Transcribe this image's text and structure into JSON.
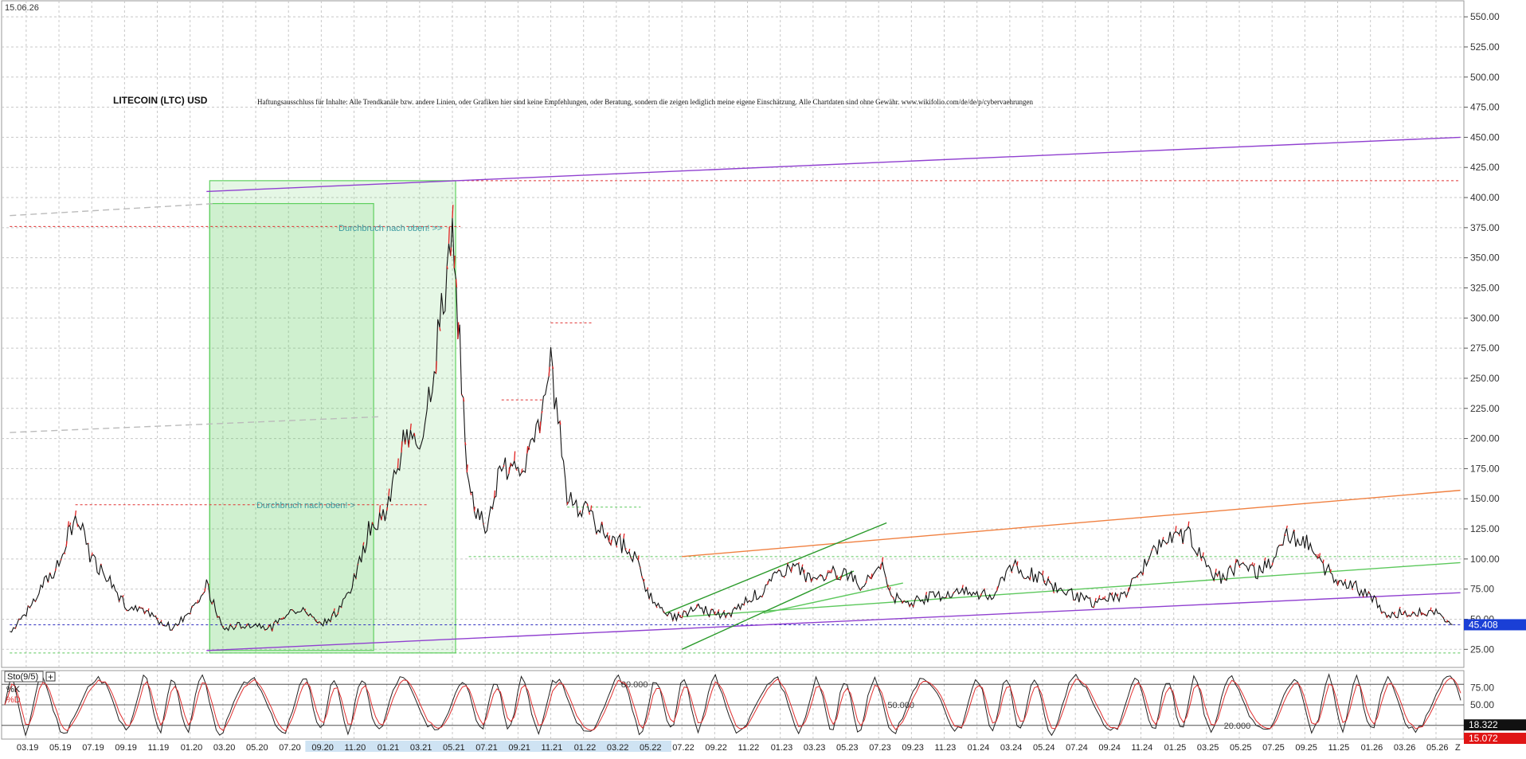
{
  "header": {
    "date": "15.06.26",
    "title": "LITECOIN (LTC) USD",
    "disclaimer": "Haftungsausschluss für Inhalte: Alle Trendkanäle bzw. andere Linien, oder Grafiken hier sind keine Empfehlungen, oder Beratung, sondern die zeigen lediglich meine eigene Einschätzung. Alle Chartdaten sind ohne Gewähr.  www.wikifolio.com/de/de/p/cybervaehrungen"
  },
  "chart_data": [
    {
      "type": "candlestick",
      "title": "LITECOIN (LTC) USD",
      "y_axis_position": "right",
      "ylim": [
        10,
        560
      ],
      "yticks": [
        "25.00",
        "50.00",
        "75.00",
        "100.00",
        "125.00",
        "150.00",
        "175.00",
        "200.00",
        "225.00",
        "250.00",
        "275.00",
        "300.00",
        "325.00",
        "350.00",
        "375.00",
        "400.00",
        "425.00",
        "450.00",
        "475.00",
        "500.00",
        "525.00",
        "550.00"
      ],
      "xticks": [
        "03.19",
        "05.19",
        "07.19",
        "09.19",
        "11.19",
        "01.20",
        "03.20",
        "05.20",
        "07.20",
        "09.20",
        "11.20",
        "01.21",
        "03.21",
        "05.21",
        "07.21",
        "09.21",
        "11.21",
        "01.22",
        "03.22",
        "05.22",
        "07.22",
        "09.22",
        "11.22",
        "01.23",
        "03.23",
        "05.23",
        "07.23",
        "09.23",
        "11.23",
        "01.24",
        "03.24",
        "05.24",
        "07.24",
        "09.24",
        "11.24",
        "01.25",
        "03.25",
        "05.25",
        "07.25",
        "09.25",
        "11.25",
        "01.26",
        "03.26",
        "05.26"
      ],
      "x_range": [
        "2019-02",
        "2026-06"
      ],
      "price_series": {
        "name": "LTC/USD",
        "points": [
          [
            "2019-02",
            40
          ],
          [
            "2019-03",
            55
          ],
          [
            "2019-04",
            78
          ],
          [
            "2019-05",
            95
          ],
          [
            "2019-06",
            138
          ],
          [
            "2019-07",
            100
          ],
          [
            "2019-08",
            85
          ],
          [
            "2019-09",
            62
          ],
          [
            "2019-10",
            56
          ],
          [
            "2019-11",
            50
          ],
          [
            "2019-12",
            42
          ],
          [
            "2020-01",
            58
          ],
          [
            "2020-02",
            78
          ],
          [
            "2020-03",
            42
          ],
          [
            "2020-04",
            45
          ],
          [
            "2020-05",
            46
          ],
          [
            "2020-06",
            43
          ],
          [
            "2020-07",
            58
          ],
          [
            "2020-08",
            57
          ],
          [
            "2020-09",
            47
          ],
          [
            "2020-10",
            55
          ],
          [
            "2020-11",
            82
          ],
          [
            "2020-12",
            128
          ],
          [
            "2021-01",
            140
          ],
          [
            "2021-02",
            200
          ],
          [
            "2021-03",
            195
          ],
          [
            "2021-04",
            270
          ],
          [
            "2021-05",
            370
          ],
          [
            "2021-06",
            158
          ],
          [
            "2021-07",
            125
          ],
          [
            "2021-08",
            175
          ],
          [
            "2021-09",
            170
          ],
          [
            "2021-10",
            195
          ],
          [
            "2021-11",
            260
          ],
          [
            "2021-12",
            155
          ],
          [
            "2022-01",
            140
          ],
          [
            "2022-02",
            125
          ],
          [
            "2022-03",
            115
          ],
          [
            "2022-04",
            105
          ],
          [
            "2022-05",
            70
          ],
          [
            "2022-06",
            52
          ],
          [
            "2022-07",
            53
          ],
          [
            "2022-08",
            60
          ],
          [
            "2022-09",
            54
          ],
          [
            "2022-10",
            53
          ],
          [
            "2022-11",
            68
          ],
          [
            "2022-12",
            72
          ],
          [
            "2023-01",
            90
          ],
          [
            "2023-02",
            95
          ],
          [
            "2023-03",
            80
          ],
          [
            "2023-04",
            88
          ],
          [
            "2023-05",
            88
          ],
          [
            "2023-06",
            78
          ],
          [
            "2023-07",
            98
          ],
          [
            "2023-08",
            68
          ],
          [
            "2023-09",
            64
          ],
          [
            "2023-10",
            68
          ],
          [
            "2023-11",
            70
          ],
          [
            "2023-12",
            73
          ],
          [
            "2024-01",
            70
          ],
          [
            "2024-02",
            70
          ],
          [
            "2024-03",
            95
          ],
          [
            "2024-04",
            88
          ],
          [
            "2024-05",
            85
          ],
          [
            "2024-06",
            75
          ],
          [
            "2024-07",
            70
          ],
          [
            "2024-08",
            63
          ],
          [
            "2024-09",
            68
          ],
          [
            "2024-10",
            70
          ],
          [
            "2024-11",
            90
          ],
          [
            "2024-12",
            110
          ],
          [
            "2025-01",
            118
          ],
          [
            "2025-02",
            120
          ],
          [
            "2025-03",
            90
          ],
          [
            "2025-04",
            85
          ],
          [
            "2025-05",
            95
          ],
          [
            "2025-06",
            88
          ],
          [
            "2025-07",
            100
          ],
          [
            "2025-08",
            120
          ],
          [
            "2025-09",
            115
          ],
          [
            "2025-10",
            95
          ],
          [
            "2025-11",
            84
          ],
          [
            "2025-12",
            78
          ],
          [
            "2026-01",
            68
          ],
          [
            "2026-02",
            55
          ],
          [
            "2026-03",
            55
          ],
          [
            "2026-04",
            56
          ],
          [
            "2026-05",
            55
          ],
          [
            "2026-06",
            45.4
          ]
        ]
      },
      "last_price": "45.408",
      "annotations": [
        {
          "text": "Durchbruch nach oben! >>",
          "date": "2021-05",
          "value": 375
        },
        {
          "text": "Durchbruch nach oben! >",
          "date": "2020-12",
          "value": 145
        }
      ],
      "horizontal_levels": [
        {
          "value": 414,
          "color": "#e03030",
          "from": "2021-05",
          "to": "2026-06"
        },
        {
          "value": 376,
          "color": "#e03030",
          "from": "2019-02",
          "to": "2021-05"
        },
        {
          "value": 145,
          "color": "#e03030",
          "from": "2019-06",
          "to": "2021-03"
        },
        {
          "value": 296,
          "color": "#e03030",
          "from": "2021-11",
          "to": "2022-01"
        },
        {
          "value": 232,
          "color": "#e03030",
          "from": "2021-08",
          "to": "2021-10"
        },
        {
          "value": 102,
          "color": "#5cc85c",
          "from": "2021-06",
          "to": "2026-06"
        },
        {
          "value": 143,
          "color": "#5cc85c",
          "from": "2021-12",
          "to": "2022-04"
        },
        {
          "value": 45.4,
          "color": "#3030c0",
          "from": "2019-02",
          "to": "2026-06"
        },
        {
          "value": 22,
          "color": "#5cc85c",
          "from": "2019-02",
          "to": "2026-06"
        }
      ],
      "trend_lines": [
        {
          "color": "#9040d0",
          "from": [
            "2020-02",
            405
          ],
          "to": [
            "2026-06",
            450
          ]
        },
        {
          "color": "#9040d0",
          "from": [
            "2020-02",
            24
          ],
          "to": [
            "2026-06",
            72
          ]
        },
        {
          "color": "#f08040",
          "from": [
            "2022-07",
            102
          ],
          "to": [
            "2026-06",
            157
          ]
        },
        {
          "color": "#5cc85c",
          "from": [
            "2022-07",
            52
          ],
          "to": [
            "2026-06",
            97
          ]
        },
        {
          "color": "#5cc85c",
          "from": [
            "2022-12",
            55
          ],
          "to": [
            "2023-08",
            80
          ]
        },
        {
          "color": "#2a9a2a",
          "from": [
            "2022-06",
            55
          ],
          "to": [
            "2023-07",
            130
          ]
        },
        {
          "color": "#2a9a2a",
          "from": [
            "2022-07",
            25
          ],
          "to": [
            "2023-05",
            90
          ]
        },
        {
          "color": "#bbbbbb",
          "from": [
            "2019-02",
            385
          ],
          "to": [
            "2020-02",
            395
          ]
        },
        {
          "color": "#bbbbbb",
          "from": [
            "2019-02",
            205
          ],
          "to": [
            "2020-12",
            218
          ]
        }
      ],
      "boxes": [
        {
          "color": "#60d060",
          "from": "2020-02",
          "to": "2021-05",
          "low": 22,
          "high": 414
        },
        {
          "color": "#60d060",
          "from": "2020-02",
          "to": "2020-12",
          "low": 24,
          "high": 395
        }
      ]
    },
    {
      "type": "line",
      "title": "Sto(9/5)",
      "series": [
        {
          "name": "%K",
          "color": "#222222"
        },
        {
          "name": "%D",
          "color": "#e03030"
        }
      ],
      "levels": [
        "80.000",
        "50.000",
        "20.000"
      ],
      "ylim": [
        0,
        100
      ],
      "yticks": [
        "75.00",
        "50.00"
      ],
      "last_values": {
        "%K": "18.322",
        "%D": "15.072"
      },
      "axis_end_label": "Z"
    }
  ]
}
